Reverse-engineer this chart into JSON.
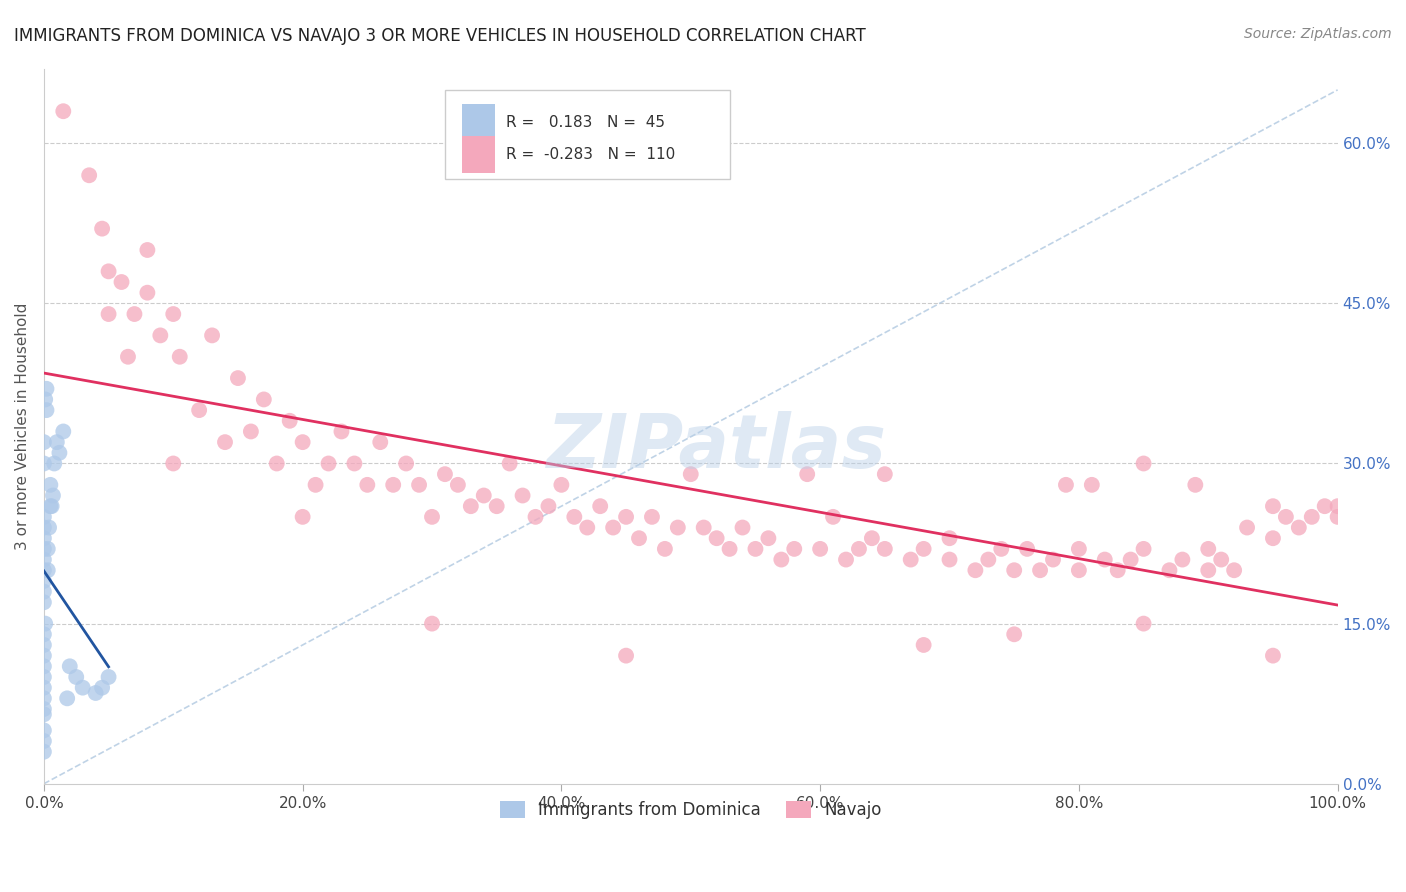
{
  "title": "IMMIGRANTS FROM DOMINICA VS NAVAJO 3 OR MORE VEHICLES IN HOUSEHOLD CORRELATION CHART",
  "source": "Source: ZipAtlas.com",
  "ylabel": "3 or more Vehicles in Household",
  "xlim": [
    0.0,
    100.0
  ],
  "ylim": [
    0.0,
    67.0
  ],
  "yticks": [
    0.0,
    15.0,
    30.0,
    45.0,
    60.0
  ],
  "xticks": [
    0.0,
    20.0,
    40.0,
    60.0,
    80.0,
    100.0
  ],
  "blue_R": 0.183,
  "blue_N": 45,
  "pink_R": -0.283,
  "pink_N": 110,
  "blue_color": "#adc8e8",
  "pink_color": "#f4a8bc",
  "blue_line_color": "#2255a0",
  "pink_line_color": "#e03060",
  "watermark": "ZIPatlas",
  "legend_label_blue": "Immigrants from Dominica",
  "legend_label_pink": "Navajo",
  "blue_scatter": [
    [
      0.0,
      14.0
    ],
    [
      0.0,
      17.0
    ],
    [
      0.0,
      18.0
    ],
    [
      0.0,
      19.0
    ],
    [
      0.0,
      20.0
    ],
    [
      0.0,
      21.0
    ],
    [
      0.0,
      22.0
    ],
    [
      0.0,
      23.0
    ],
    [
      0.0,
      24.0
    ],
    [
      0.0,
      25.0
    ],
    [
      0.0,
      13.0
    ],
    [
      0.0,
      12.0
    ],
    [
      0.0,
      11.0
    ],
    [
      0.0,
      10.0
    ],
    [
      0.0,
      9.0
    ],
    [
      0.0,
      8.0
    ],
    [
      0.0,
      7.0
    ],
    [
      0.0,
      6.5
    ],
    [
      0.3,
      22.0
    ],
    [
      0.3,
      20.0
    ],
    [
      0.5,
      26.0
    ],
    [
      0.5,
      28.0
    ],
    [
      0.8,
      30.0
    ],
    [
      1.0,
      32.0
    ],
    [
      1.2,
      31.0
    ],
    [
      1.5,
      33.0
    ],
    [
      0.2,
      35.0
    ],
    [
      0.2,
      37.0
    ],
    [
      0.1,
      36.0
    ],
    [
      0.4,
      24.0
    ],
    [
      0.6,
      26.0
    ],
    [
      0.7,
      27.0
    ],
    [
      0.0,
      30.0
    ],
    [
      0.0,
      32.0
    ],
    [
      0.1,
      15.0
    ],
    [
      2.0,
      11.0
    ],
    [
      2.5,
      10.0
    ],
    [
      3.0,
      9.0
    ],
    [
      0.0,
      5.0
    ],
    [
      0.0,
      4.0
    ],
    [
      0.0,
      3.0
    ],
    [
      1.8,
      8.0
    ],
    [
      4.0,
      8.5
    ],
    [
      4.5,
      9.0
    ],
    [
      5.0,
      10.0
    ]
  ],
  "pink_scatter": [
    [
      1.5,
      63.0
    ],
    [
      3.5,
      57.0
    ],
    [
      4.5,
      52.0
    ],
    [
      5.0,
      48.0
    ],
    [
      6.0,
      47.0
    ],
    [
      7.0,
      44.0
    ],
    [
      8.0,
      46.0
    ],
    [
      8.0,
      50.0
    ],
    [
      9.0,
      42.0
    ],
    [
      10.0,
      44.0
    ],
    [
      10.5,
      40.0
    ],
    [
      5.0,
      44.0
    ],
    [
      6.5,
      40.0
    ],
    [
      12.0,
      35.0
    ],
    [
      13.0,
      42.0
    ],
    [
      14.0,
      32.0
    ],
    [
      15.0,
      38.0
    ],
    [
      16.0,
      33.0
    ],
    [
      17.0,
      36.0
    ],
    [
      18.0,
      30.0
    ],
    [
      19.0,
      34.0
    ],
    [
      20.0,
      32.0
    ],
    [
      21.0,
      28.0
    ],
    [
      22.0,
      30.0
    ],
    [
      23.0,
      33.0
    ],
    [
      24.0,
      30.0
    ],
    [
      25.0,
      28.0
    ],
    [
      26.0,
      32.0
    ],
    [
      27.0,
      28.0
    ],
    [
      28.0,
      30.0
    ],
    [
      29.0,
      28.0
    ],
    [
      30.0,
      25.0
    ],
    [
      31.0,
      29.0
    ],
    [
      32.0,
      28.0
    ],
    [
      33.0,
      26.0
    ],
    [
      34.0,
      27.0
    ],
    [
      35.0,
      26.0
    ],
    [
      36.0,
      30.0
    ],
    [
      37.0,
      27.0
    ],
    [
      38.0,
      25.0
    ],
    [
      39.0,
      26.0
    ],
    [
      40.0,
      28.0
    ],
    [
      41.0,
      25.0
    ],
    [
      42.0,
      24.0
    ],
    [
      43.0,
      26.0
    ],
    [
      44.0,
      24.0
    ],
    [
      45.0,
      25.0
    ],
    [
      46.0,
      23.0
    ],
    [
      47.0,
      25.0
    ],
    [
      48.0,
      22.0
    ],
    [
      49.0,
      24.0
    ],
    [
      50.0,
      29.0
    ],
    [
      51.0,
      24.0
    ],
    [
      52.0,
      23.0
    ],
    [
      53.0,
      22.0
    ],
    [
      54.0,
      24.0
    ],
    [
      55.0,
      22.0
    ],
    [
      56.0,
      23.0
    ],
    [
      57.0,
      21.0
    ],
    [
      58.0,
      22.0
    ],
    [
      59.0,
      29.0
    ],
    [
      60.0,
      22.0
    ],
    [
      61.0,
      25.0
    ],
    [
      62.0,
      21.0
    ],
    [
      63.0,
      22.0
    ],
    [
      64.0,
      23.0
    ],
    [
      65.0,
      29.0
    ],
    [
      65.0,
      22.0
    ],
    [
      67.0,
      21.0
    ],
    [
      68.0,
      22.0
    ],
    [
      70.0,
      21.0
    ],
    [
      70.0,
      23.0
    ],
    [
      72.0,
      20.0
    ],
    [
      73.0,
      21.0
    ],
    [
      74.0,
      22.0
    ],
    [
      75.0,
      20.0
    ],
    [
      76.0,
      22.0
    ],
    [
      77.0,
      20.0
    ],
    [
      78.0,
      21.0
    ],
    [
      79.0,
      28.0
    ],
    [
      80.0,
      20.0
    ],
    [
      80.0,
      22.0
    ],
    [
      81.0,
      28.0
    ],
    [
      82.0,
      21.0
    ],
    [
      83.0,
      20.0
    ],
    [
      84.0,
      21.0
    ],
    [
      85.0,
      30.0
    ],
    [
      85.0,
      22.0
    ],
    [
      87.0,
      20.0
    ],
    [
      88.0,
      21.0
    ],
    [
      89.0,
      28.0
    ],
    [
      90.0,
      20.0
    ],
    [
      90.0,
      22.0
    ],
    [
      91.0,
      21.0
    ],
    [
      92.0,
      20.0
    ],
    [
      93.0,
      24.0
    ],
    [
      95.0,
      23.0
    ],
    [
      95.0,
      26.0
    ],
    [
      96.0,
      25.0
    ],
    [
      97.0,
      24.0
    ],
    [
      98.0,
      25.0
    ],
    [
      99.0,
      26.0
    ],
    [
      100.0,
      25.0
    ],
    [
      100.0,
      26.0
    ],
    [
      45.0,
      12.0
    ],
    [
      68.0,
      13.0
    ],
    [
      85.0,
      15.0
    ],
    [
      75.0,
      14.0
    ],
    [
      95.0,
      12.0
    ],
    [
      30.0,
      15.0
    ],
    [
      20.0,
      25.0
    ],
    [
      10.0,
      30.0
    ]
  ]
}
